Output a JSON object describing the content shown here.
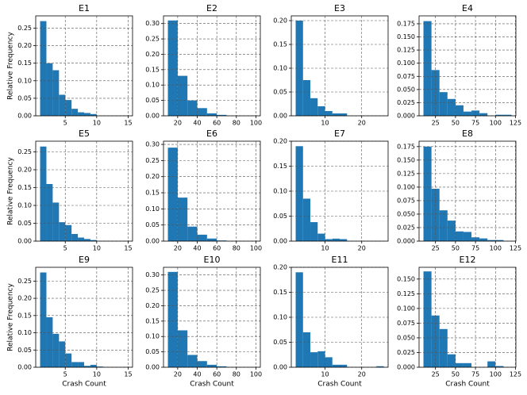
{
  "chart_data": [
    {
      "type": "histogram",
      "title": "E1",
      "ylabel": "Relative Frequency",
      "color": "#1f77b4",
      "grid": true,
      "bins": [
        1,
        2,
        3,
        4,
        5,
        6,
        7,
        8,
        9,
        10,
        11,
        12,
        13,
        14,
        15
      ],
      "values": [
        0.27,
        0.15,
        0.13,
        0.06,
        0.045,
        0.02,
        0.01,
        0.008,
        0.005,
        0,
        0,
        0,
        0,
        0
      ],
      "xlim": [
        0.3,
        15.7
      ],
      "ylim": [
        0,
        0.285
      ],
      "xticks": [
        5,
        10,
        15
      ],
      "yticks": [
        {
          "value": 0,
          "label": "0.00"
        },
        {
          "value": 0.05,
          "label": "0.05"
        },
        {
          "value": 0.1,
          "label": "0.10"
        },
        {
          "value": 0.15,
          "label": "0.15"
        },
        {
          "value": 0.2,
          "label": "0.20"
        },
        {
          "value": 0.25,
          "label": "0.25"
        }
      ]
    },
    {
      "type": "histogram",
      "title": "E2",
      "color": "#1f77b4",
      "grid": true,
      "bins": [
        10,
        20,
        30,
        40,
        50,
        60,
        70,
        80,
        90,
        100
      ],
      "values": [
        0.31,
        0.13,
        0.05,
        0.025,
        0.008,
        0.003,
        0,
        0,
        0
      ],
      "xlim": [
        5.5,
        104.5
      ],
      "ylim": [
        0,
        0.325
      ],
      "xticks": [
        20,
        40,
        60,
        80,
        100
      ],
      "yticks": [
        {
          "value": 0,
          "label": "0.00"
        },
        {
          "value": 0.05,
          "label": "0.05"
        },
        {
          "value": 0.1,
          "label": "0.10"
        },
        {
          "value": 0.15,
          "label": "0.15"
        },
        {
          "value": 0.2,
          "label": "0.20"
        },
        {
          "value": 0.25,
          "label": "0.25"
        },
        {
          "value": 0.3,
          "label": "0.30"
        }
      ]
    },
    {
      "type": "histogram",
      "title": "E3",
      "color": "#1f77b4",
      "grid": true,
      "bins": [
        2,
        4,
        6,
        8,
        10,
        12,
        14,
        16,
        18,
        20,
        22,
        24,
        26
      ],
      "values": [
        0.2,
        0.075,
        0.037,
        0.02,
        0.01,
        0.005,
        0.005,
        0,
        0,
        0,
        0,
        0
      ],
      "xlim": [
        0.8,
        27.2
      ],
      "ylim": [
        0,
        0.21
      ],
      "xticks": [
        10,
        20
      ],
      "yticks": [
        {
          "value": 0,
          "label": "0.00"
        },
        {
          "value": 0.05,
          "label": "0.05"
        },
        {
          "value": 0.1,
          "label": "0.10"
        },
        {
          "value": 0.15,
          "label": "0.15"
        },
        {
          "value": 0.2,
          "label": "0.20"
        }
      ]
    },
    {
      "type": "histogram",
      "title": "E4",
      "color": "#1f77b4",
      "grid": true,
      "bins": [
        10,
        20,
        30,
        40,
        50,
        60,
        70,
        80,
        90,
        100,
        110,
        120
      ],
      "values": [
        0.18,
        0.087,
        0.045,
        0.032,
        0.02,
        0.008,
        0.01,
        0.005,
        0,
        0.002,
        0.002
      ],
      "xlim": [
        4.5,
        125.5
      ],
      "ylim": [
        0,
        0.19
      ],
      "xticks": [
        25,
        50,
        75,
        100,
        125
      ],
      "yticks": [
        {
          "value": 0,
          "label": "0.000"
        },
        {
          "value": 0.025,
          "label": "0.025"
        },
        {
          "value": 0.05,
          "label": "0.050"
        },
        {
          "value": 0.075,
          "label": "0.075"
        },
        {
          "value": 0.1,
          "label": "0.100"
        },
        {
          "value": 0.125,
          "label": "0.125"
        },
        {
          "value": 0.15,
          "label": "0.150"
        },
        {
          "value": 0.175,
          "label": "0.175"
        }
      ]
    },
    {
      "type": "histogram",
      "title": "E5",
      "ylabel": "Relative Frequency",
      "color": "#1f77b4",
      "grid": true,
      "bins": [
        1,
        2,
        3,
        4,
        5,
        6,
        7,
        8,
        9,
        10,
        11,
        12,
        13,
        14,
        15
      ],
      "values": [
        0.265,
        0.16,
        0.108,
        0.053,
        0.045,
        0.02,
        0.01,
        0.006,
        0.003,
        0,
        0,
        0,
        0,
        0
      ],
      "xlim": [
        0.3,
        15.7
      ],
      "ylim": [
        0,
        0.28
      ],
      "xticks": [
        5,
        10,
        15
      ],
      "yticks": [
        {
          "value": 0,
          "label": "0.00"
        },
        {
          "value": 0.05,
          "label": "0.05"
        },
        {
          "value": 0.1,
          "label": "0.10"
        },
        {
          "value": 0.15,
          "label": "0.15"
        },
        {
          "value": 0.2,
          "label": "0.20"
        },
        {
          "value": 0.25,
          "label": "0.25"
        }
      ]
    },
    {
      "type": "histogram",
      "title": "E6",
      "color": "#1f77b4",
      "grid": true,
      "bins": [
        10,
        20,
        30,
        40,
        50,
        60,
        70,
        80,
        90,
        100
      ],
      "values": [
        0.29,
        0.135,
        0.045,
        0.02,
        0.008,
        0.002,
        0,
        0,
        0
      ],
      "xlim": [
        5.5,
        104.5
      ],
      "ylim": [
        0,
        0.31
      ],
      "xticks": [
        20,
        40,
        60,
        80,
        100
      ],
      "yticks": [
        {
          "value": 0,
          "label": "0.00"
        },
        {
          "value": 0.05,
          "label": "0.05"
        },
        {
          "value": 0.1,
          "label": "0.10"
        },
        {
          "value": 0.15,
          "label": "0.15"
        },
        {
          "value": 0.2,
          "label": "0.20"
        },
        {
          "value": 0.25,
          "label": "0.25"
        },
        {
          "value": 0.3,
          "label": "0.30"
        }
      ]
    },
    {
      "type": "histogram",
      "title": "E7",
      "color": "#1f77b4",
      "grid": true,
      "bins": [
        2,
        4,
        6,
        8,
        10,
        12,
        14,
        16,
        18,
        20,
        22,
        24,
        26
      ],
      "values": [
        0.19,
        0.085,
        0.038,
        0.015,
        0.004,
        0.005,
        0.004,
        0,
        0,
        0,
        0,
        0
      ],
      "xlim": [
        0.8,
        27.2
      ],
      "ylim": [
        0,
        0.2
      ],
      "xticks": [
        10,
        20
      ],
      "yticks": [
        {
          "value": 0,
          "label": "0.00"
        },
        {
          "value": 0.05,
          "label": "0.05"
        },
        {
          "value": 0.1,
          "label": "0.10"
        },
        {
          "value": 0.15,
          "label": "0.15"
        },
        {
          "value": 0.2,
          "label": "0.20"
        }
      ]
    },
    {
      "type": "histogram",
      "title": "E8",
      "color": "#1f77b4",
      "grid": true,
      "bins": [
        10,
        20,
        30,
        40,
        50,
        60,
        70,
        80,
        90,
        100,
        110,
        120
      ],
      "values": [
        0.175,
        0.097,
        0.057,
        0.038,
        0.018,
        0.017,
        0.007,
        0.005,
        0.002,
        0.002,
        0
      ],
      "xlim": [
        4.5,
        125.5
      ],
      "ylim": [
        0,
        0.185
      ],
      "xticks": [
        25,
        50,
        75,
        100,
        125
      ],
      "yticks": [
        {
          "value": 0,
          "label": "0.000"
        },
        {
          "value": 0.025,
          "label": "0.025"
        },
        {
          "value": 0.05,
          "label": "0.050"
        },
        {
          "value": 0.075,
          "label": "0.075"
        },
        {
          "value": 0.1,
          "label": "0.100"
        },
        {
          "value": 0.125,
          "label": "0.125"
        },
        {
          "value": 0.15,
          "label": "0.150"
        },
        {
          "value": 0.175,
          "label": "0.175"
        }
      ]
    },
    {
      "type": "histogram",
      "title": "E9",
      "ylabel": "Relative Frequency",
      "xlabel": "Crash Count",
      "color": "#1f77b4",
      "grid": true,
      "bins": [
        1,
        2,
        3,
        4,
        5,
        6,
        7,
        8,
        9,
        10,
        11,
        12,
        13,
        14,
        15
      ],
      "values": [
        0.275,
        0.145,
        0.097,
        0.075,
        0.04,
        0.015,
        0.015,
        0.004,
        0.007,
        0.002,
        0,
        0,
        0,
        0
      ],
      "xlim": [
        0.3,
        15.7
      ],
      "ylim": [
        0,
        0.29
      ],
      "xticks": [
        5,
        10,
        15
      ],
      "yticks": [
        {
          "value": 0,
          "label": "0.00"
        },
        {
          "value": 0.05,
          "label": "0.05"
        },
        {
          "value": 0.1,
          "label": "0.10"
        },
        {
          "value": 0.15,
          "label": "0.15"
        },
        {
          "value": 0.2,
          "label": "0.20"
        },
        {
          "value": 0.25,
          "label": "0.25"
        }
      ]
    },
    {
      "type": "histogram",
      "title": "E10",
      "xlabel": "Crash Count",
      "color": "#1f77b4",
      "grid": true,
      "bins": [
        10,
        20,
        30,
        40,
        50,
        60,
        70,
        80,
        90,
        100
      ],
      "values": [
        0.31,
        0.12,
        0.04,
        0.02,
        0.008,
        0.003,
        0,
        0,
        0
      ],
      "xlim": [
        5.5,
        104.5
      ],
      "ylim": [
        0,
        0.325
      ],
      "xticks": [
        20,
        40,
        60,
        80,
        100
      ],
      "yticks": [
        {
          "value": 0,
          "label": "0.00"
        },
        {
          "value": 0.05,
          "label": "0.05"
        },
        {
          "value": 0.1,
          "label": "0.10"
        },
        {
          "value": 0.15,
          "label": "0.15"
        },
        {
          "value": 0.2,
          "label": "0.20"
        },
        {
          "value": 0.25,
          "label": "0.25"
        },
        {
          "value": 0.3,
          "label": "0.30"
        }
      ]
    },
    {
      "type": "histogram",
      "title": "E11",
      "xlabel": "Crash Count",
      "color": "#1f77b4",
      "grid": true,
      "bins": [
        2,
        4,
        6,
        8,
        10,
        12,
        14,
        16,
        18,
        20,
        22,
        24,
        26
      ],
      "values": [
        0.19,
        0.07,
        0.03,
        0.032,
        0.02,
        0.005,
        0.005,
        0,
        0,
        0,
        0,
        0.002
      ],
      "xlim": [
        0.8,
        27.2
      ],
      "ylim": [
        0,
        0.2
      ],
      "xticks": [
        10,
        20
      ],
      "yticks": [
        {
          "value": 0,
          "label": "0.00"
        },
        {
          "value": 0.05,
          "label": "0.05"
        },
        {
          "value": 0.1,
          "label": "0.10"
        },
        {
          "value": 0.15,
          "label": "0.15"
        },
        {
          "value": 0.2,
          "label": "0.20"
        }
      ]
    },
    {
      "type": "histogram",
      "title": "E12",
      "xlabel": "Crash Count",
      "color": "#1f77b4",
      "grid": true,
      "bins": [
        10,
        20,
        30,
        40,
        50,
        60,
        70,
        80,
        90,
        100,
        110,
        120
      ],
      "values": [
        0.163,
        0.088,
        0.065,
        0.022,
        0.007,
        0.007,
        0,
        0,
        0.01,
        0.002,
        0
      ],
      "xlim": [
        4.5,
        125.5
      ],
      "ylim": [
        0,
        0.17
      ],
      "xticks": [
        25,
        50,
        75,
        100,
        125
      ],
      "yticks": [
        {
          "value": 0,
          "label": "0.000"
        },
        {
          "value": 0.025,
          "label": "0.025"
        },
        {
          "value": 0.05,
          "label": "0.050"
        },
        {
          "value": 0.075,
          "label": "0.075"
        },
        {
          "value": 0.1,
          "label": "0.100"
        },
        {
          "value": 0.125,
          "label": "0.125"
        },
        {
          "value": 0.15,
          "label": "0.150"
        }
      ]
    }
  ]
}
